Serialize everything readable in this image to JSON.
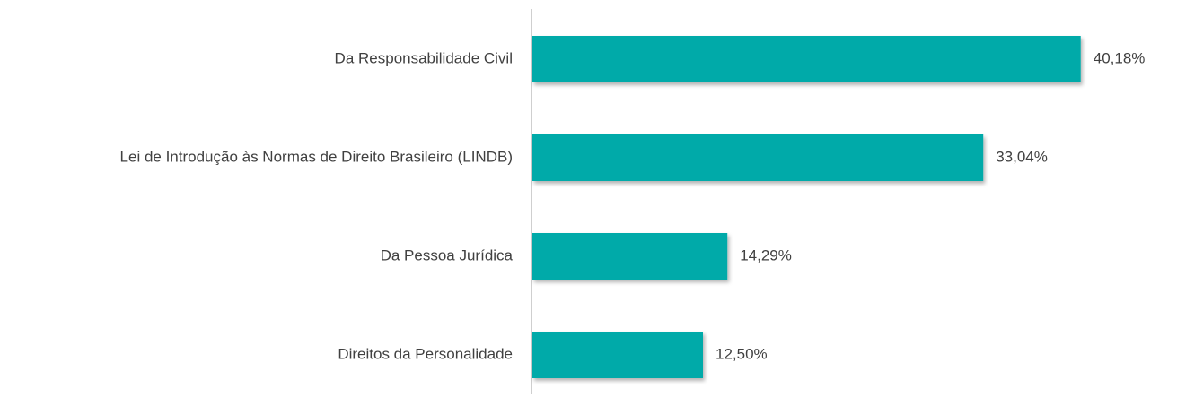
{
  "chart_data": {
    "type": "hbar",
    "categories": [
      "Da Responsabilidade Civil",
      "Lei de Introdução às Normas de Direito Brasileiro (LINDB)",
      "Da Pessoa Jurídica",
      "Direitos da Personalidade"
    ],
    "values": [
      40.18,
      33.04,
      14.29,
      12.5
    ],
    "value_labels": [
      "40,18%",
      "33,04%",
      "14,29%",
      "12,50%"
    ],
    "color": "#00aaa9"
  }
}
